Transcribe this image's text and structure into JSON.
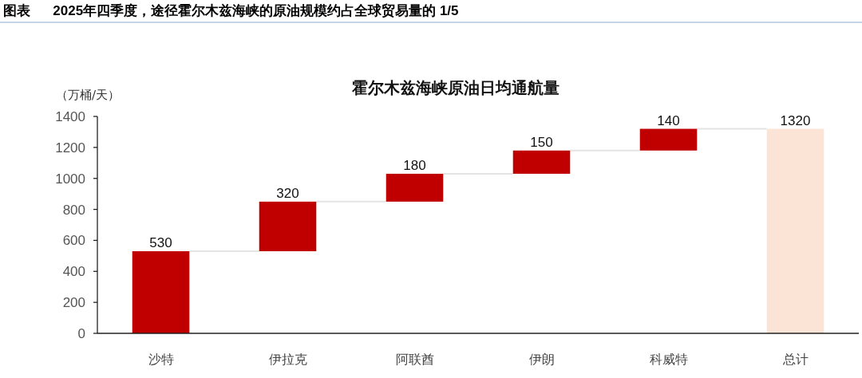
{
  "chart_data": {
    "type": "bar",
    "title": "图表      2025年四季度，途径霍尔木兹海峡的原油规模约占全球贸易量的 1/5",
    "subtitle": "霍尔木兹海峡原油日均通航量",
    "ylabel": "（万桶/天）",
    "categories": [
      "沙特",
      "伊拉克",
      "阿联酋",
      "伊朗",
      "科威特",
      "总计"
    ],
    "values": [
      530,
      320,
      180,
      150,
      140,
      1320
    ],
    "base": [
      0,
      530,
      850,
      1030,
      1180,
      0
    ],
    "colors": [
      "#c00000",
      "#c00000",
      "#c00000",
      "#c00000",
      "#c00000",
      "#fbe3d6"
    ],
    "ylim": [
      0,
      1400
    ],
    "yticks": [
      0,
      200,
      400,
      600,
      800,
      1000,
      1200,
      1400
    ],
    "data_labels": true,
    "grid": false
  }
}
